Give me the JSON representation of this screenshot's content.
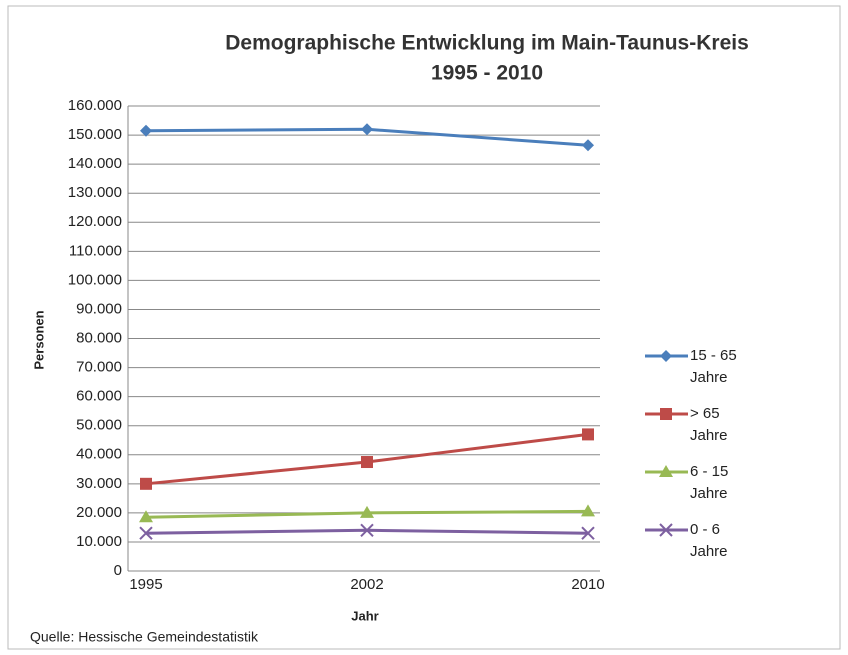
{
  "chart_data": {
    "type": "line",
    "title": "Demographische Entwicklung im Main-Taunus-Kreis",
    "subtitle": "1995 - 2010",
    "y_label": "Personen",
    "x_label": "Jahr",
    "source": "Quelle: Hessische Gemeindestatistik",
    "categories": [
      "1995",
      "2002",
      "2010"
    ],
    "series": [
      {
        "name": "15 - 65 Jahre",
        "color": "#4a7ebb",
        "marker": "diamond",
        "values": [
          151500,
          152000,
          146500
        ]
      },
      {
        "name": "> 65 Jahre",
        "color": "#be4b48",
        "marker": "square",
        "values": [
          30000,
          37500,
          47000
        ]
      },
      {
        "name": "6 - 15 Jahre",
        "color": "#98b954",
        "marker": "triangle",
        "values": [
          18500,
          20000,
          20500
        ]
      },
      {
        "name": "0 - 6 Jahre",
        "color": "#7d60a0",
        "marker": "x",
        "values": [
          13000,
          14000,
          13000
        ]
      }
    ],
    "ylim": [
      0,
      160000
    ],
    "yticks": [
      0,
      {
        "value": 10000,
        "label": "10.000"
      },
      {
        "value": 20000,
        "label": "20.000"
      },
      {
        "value": 30000,
        "label": "30.000"
      },
      {
        "value": 40000,
        "label": "40.000"
      },
      {
        "value": 50000,
        "label": "50.000"
      },
      {
        "value": 60000,
        "label": "60.000"
      },
      {
        "value": 70000,
        "label": "70.000"
      },
      {
        "value": 80000,
        "label": "80.000"
      },
      {
        "value": 90000,
        "label": "90.000"
      },
      {
        "value": 100000,
        "label": "100.000"
      },
      {
        "value": 110000,
        "label": "110.000"
      },
      {
        "value": 120000,
        "label": "120.000"
      },
      {
        "value": 130000,
        "label": "130.000"
      },
      {
        "value": 140000,
        "label": "140.000"
      },
      {
        "value": 150000,
        "label": "150.000"
      },
      {
        "value": 160000,
        "label": "160.000"
      }
    ],
    "grid": true,
    "legend": "right"
  }
}
